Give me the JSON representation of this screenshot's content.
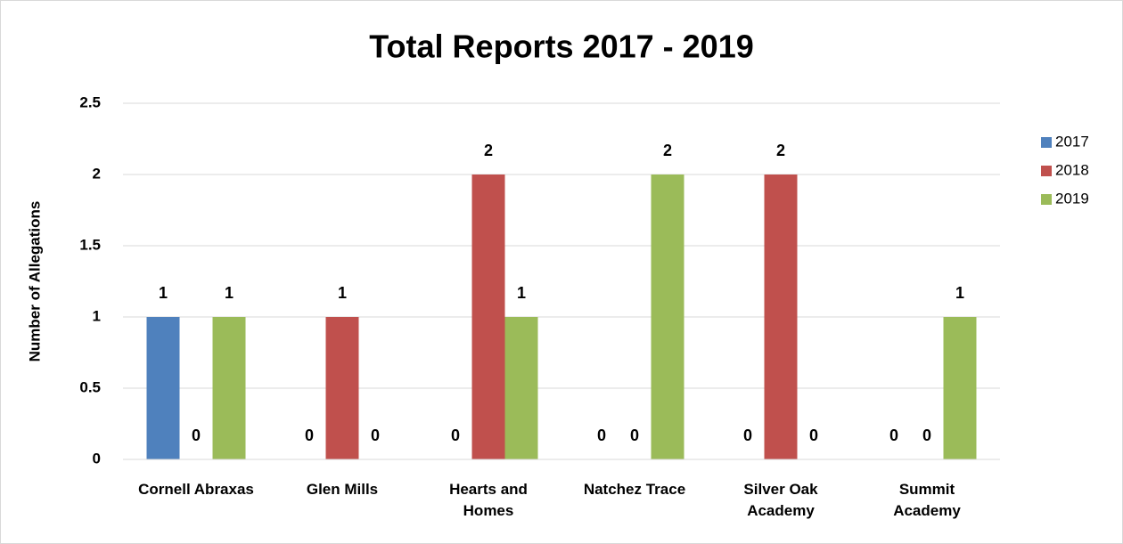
{
  "chart_data": {
    "type": "bar",
    "title": "Total Reports 2017 - 2019",
    "y_label": "Number of Allegations",
    "categories": [
      "Cornell Abraxas",
      "Glen Mills",
      "Hearts and Homes",
      "Natchez Trace",
      "Silver Oak Academy",
      "Summit Academy"
    ],
    "series": [
      {
        "name": "2017",
        "color": "#4f81bd",
        "values": [
          1,
          0,
          0,
          0,
          0,
          0
        ]
      },
      {
        "name": "2018",
        "color": "#c0504d",
        "values": [
          0,
          1,
          2,
          0,
          2,
          0
        ]
      },
      {
        "name": "2019",
        "color": "#9bbb59",
        "values": [
          1,
          0,
          1,
          2,
          0,
          1
        ]
      }
    ],
    "ylim": [
      0,
      2.5
    ],
    "yticks": [
      0,
      0.5,
      1,
      1.5,
      2,
      2.5
    ],
    "grid": true,
    "legend": "right"
  }
}
